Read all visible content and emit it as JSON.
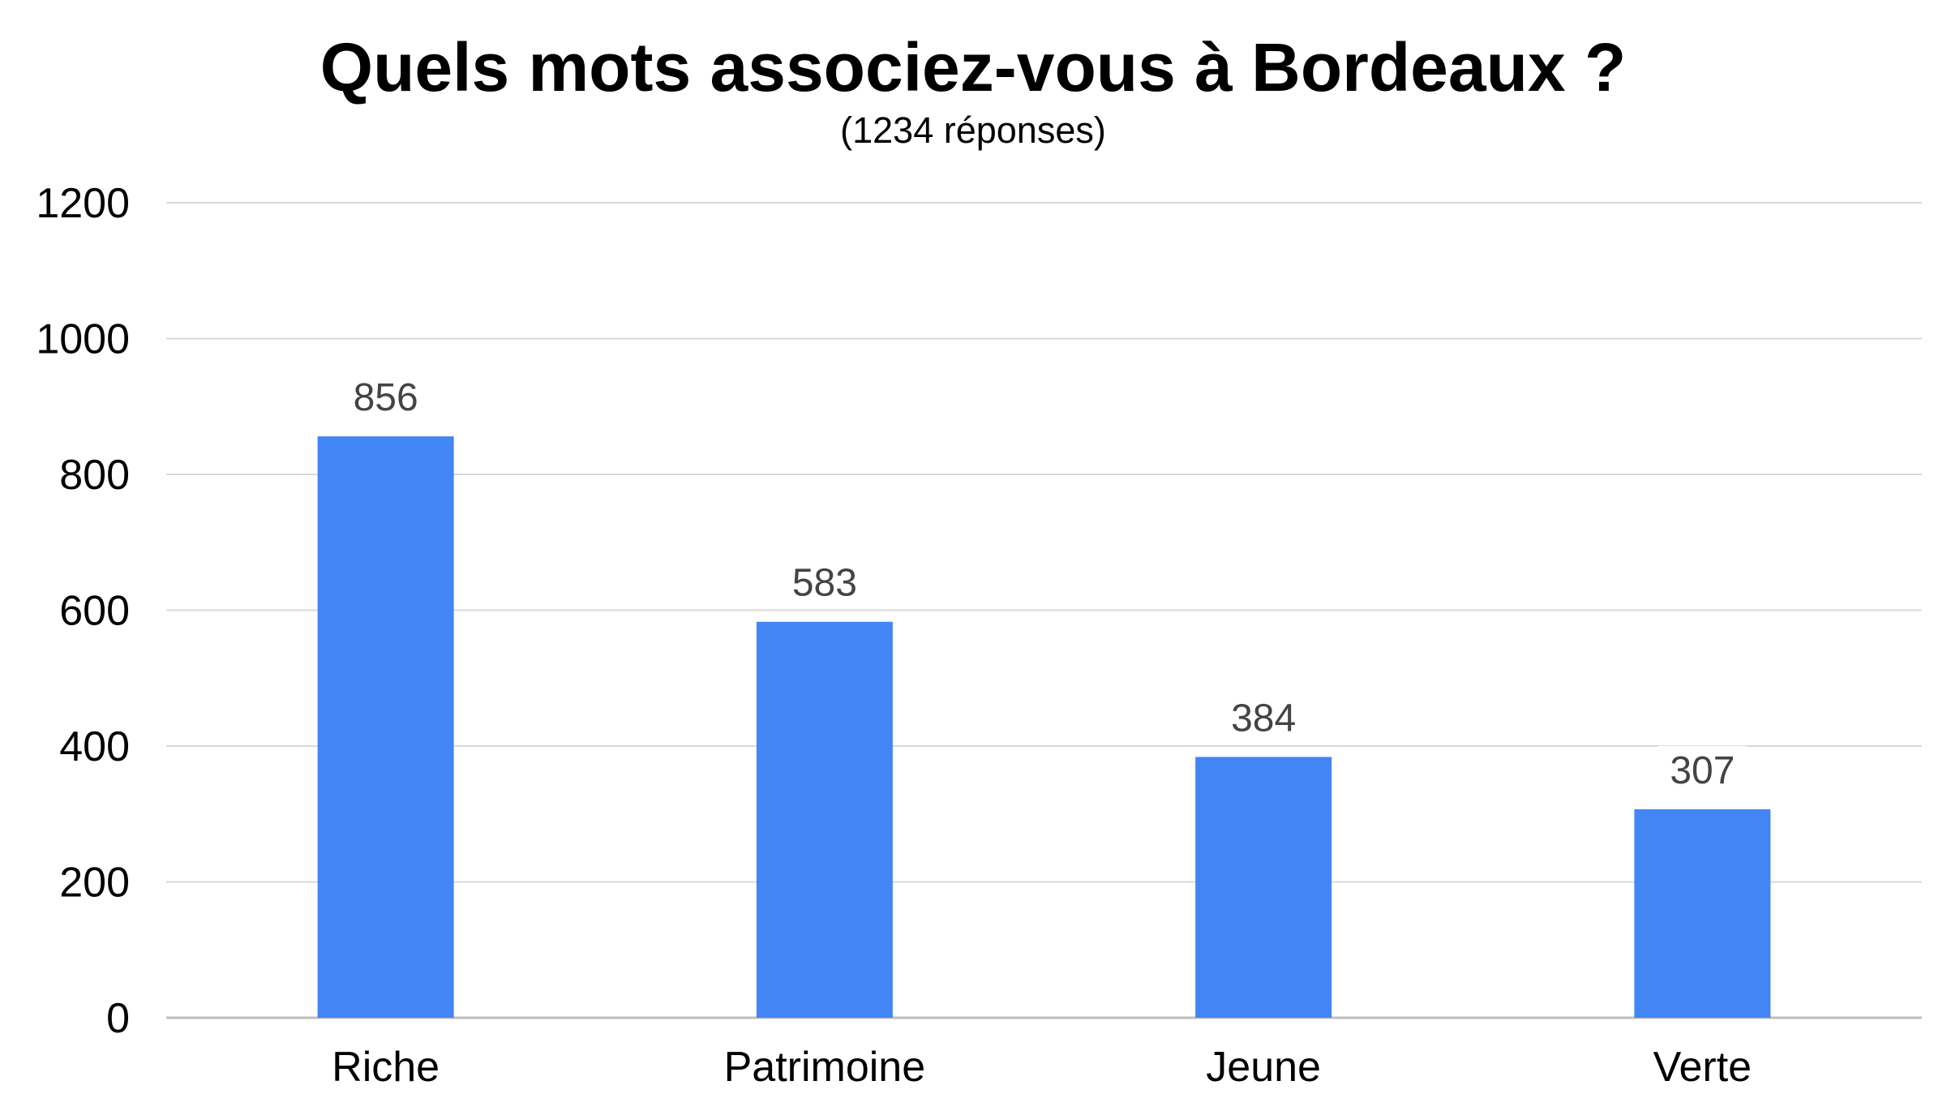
{
  "chart_data": {
    "type": "bar",
    "title": "Quels mots associez-vous à Bordeaux ?",
    "subtitle": "(1234 réponses)",
    "categories": [
      "Riche",
      "Patrimoine",
      "Jeune",
      "Verte"
    ],
    "values": [
      856,
      583,
      384,
      307
    ],
    "data_labels": [
      "856",
      "583",
      "384",
      "307"
    ],
    "ylim": [
      0,
      1200
    ],
    "yticks": [
      0,
      200,
      400,
      600,
      800,
      1000,
      1200
    ],
    "ytick_labels": [
      "0",
      "200",
      "400",
      "600",
      "800",
      "1000",
      "1200"
    ],
    "xlabel": "",
    "ylabel": "",
    "grid": true,
    "legend": "none",
    "bar_color": "#4285F4"
  }
}
